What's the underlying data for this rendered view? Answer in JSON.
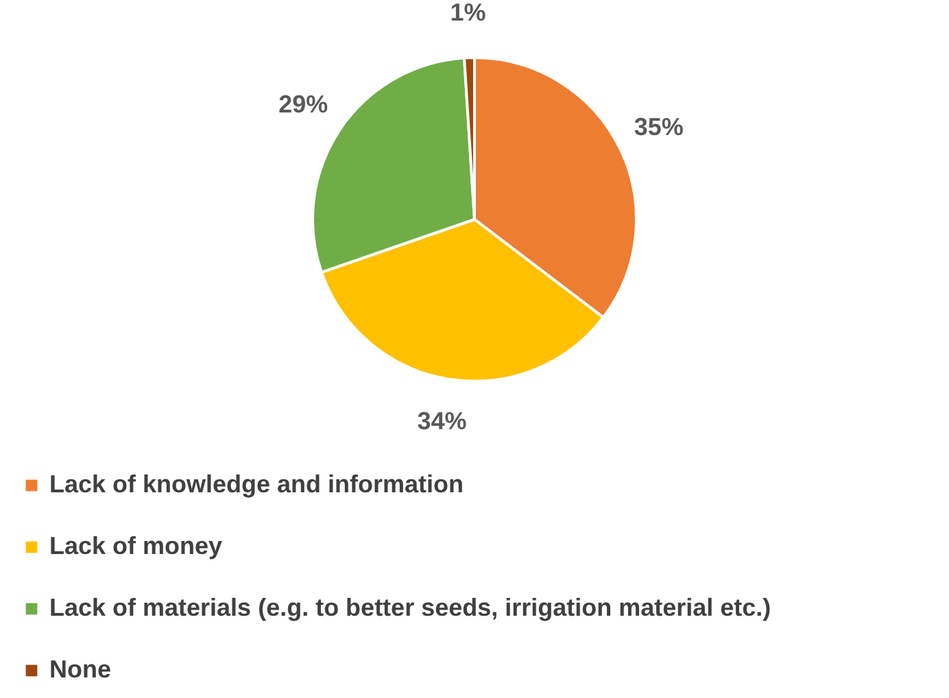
{
  "chart_data": {
    "type": "pie",
    "categories": [
      "Lack of knowledge and information",
      "Lack of money",
      "Lack of materials (e.g. to better seeds, irrigation material etc.)",
      "None"
    ],
    "values": [
      35,
      34,
      29,
      1
    ],
    "colors": [
      "#ed7d31",
      "#ffc000",
      "#70ad47",
      "#9e480e"
    ],
    "value_labels": [
      "35%",
      "34%",
      "29%",
      "1%"
    ],
    "legend": "bottom"
  }
}
